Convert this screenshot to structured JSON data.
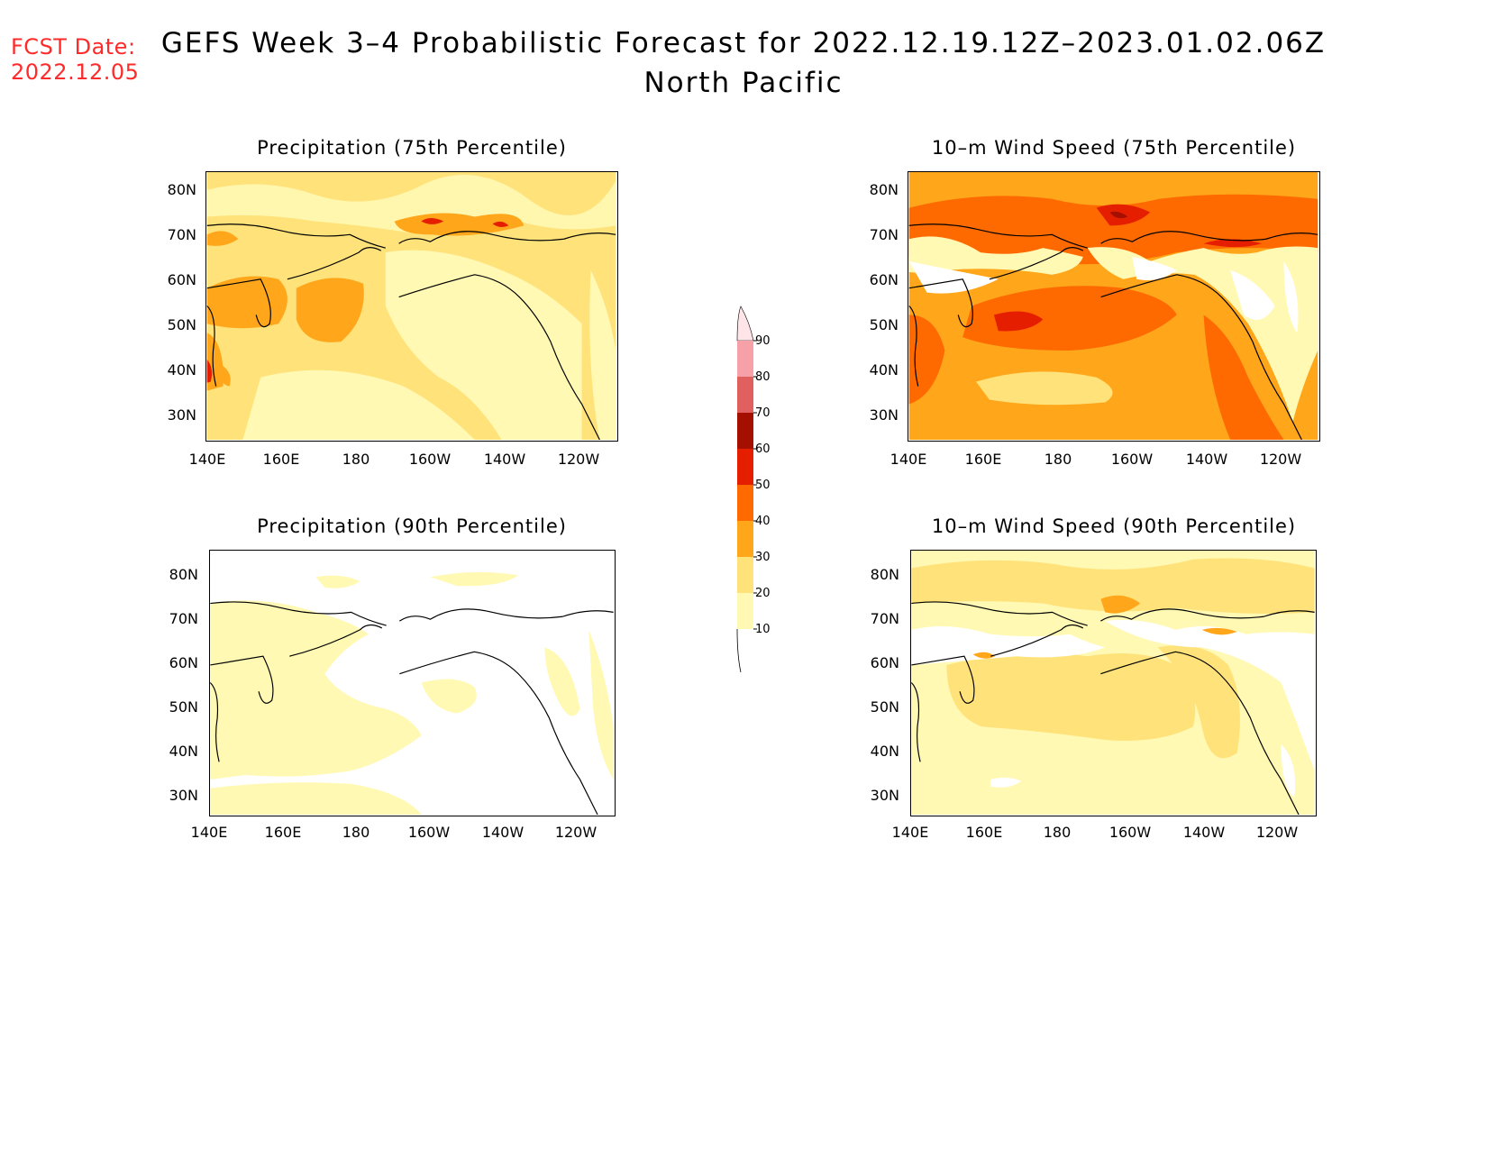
{
  "fcst_date": {
    "label": "FCST Date:",
    "value": "2022.12.05"
  },
  "title": {
    "main": "GEFS Week 3–4 Probabilistic Forecast for 2022.12.19.12Z–2023.01.02.06Z",
    "region": "North Pacific"
  },
  "panels": [
    {
      "id": "precip75",
      "title": "Precipitation (75th Percentile)"
    },
    {
      "id": "wind75",
      "title": "10–m Wind Speed (75th Percentile)"
    },
    {
      "id": "precip90",
      "title": "Precipitation (90th Percentile)"
    },
    {
      "id": "wind90",
      "title": "10–m Wind Speed (90th Percentile)"
    }
  ],
  "axes": {
    "lat_labels": [
      "80N",
      "70N",
      "60N",
      "50N",
      "40N",
      "30N"
    ],
    "lon_labels": [
      "140E",
      "160E",
      "180",
      "160W",
      "140W",
      "120W"
    ]
  },
  "colorbar": {
    "labels": [
      "90",
      "80",
      "70",
      "60",
      "50",
      "40",
      "30",
      "20",
      "10"
    ],
    "colors": {
      "c10": "#fff9b4",
      "c20": "#ffe27a",
      "c30": "#ffa61a",
      "c40": "#ff6a00",
      "c50": "#e61e00",
      "c60": "#a50f00",
      "c70": "#e06060",
      "c80": "#f6a0a8",
      "c90": "#ffe4e8"
    }
  },
  "colors": {
    "fcst": "#ff2a2a",
    "coast": "#000000"
  }
}
